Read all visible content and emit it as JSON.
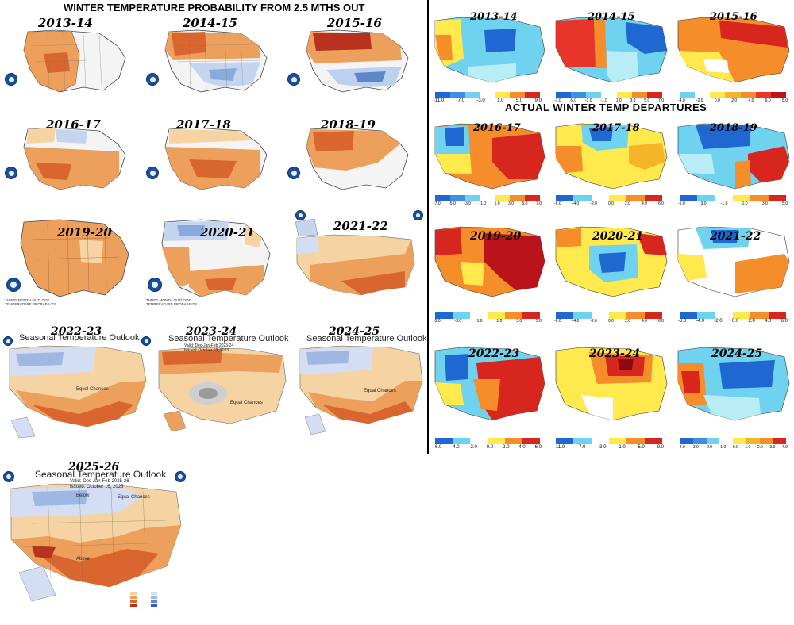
{
  "header": {
    "left_title": "WINTER TEMPERATURE PROBABILITY FROM 2.5 MTHS OUT",
    "right_title": "ACTUAL WINTER TEMP DEPARTURES"
  },
  "outlooks": [
    {
      "year": "2013-14"
    },
    {
      "year": "2014-15"
    },
    {
      "year": "2015-16"
    },
    {
      "year": "2016-17"
    },
    {
      "year": "2017-18"
    },
    {
      "year": "2018-19"
    },
    {
      "year": "2019-20"
    },
    {
      "year": "2020-21"
    },
    {
      "year": "2021-22"
    },
    {
      "year": "2022-23",
      "heading": "Seasonal Temperature Outlook",
      "equal": "Equal Chances"
    },
    {
      "year": "2023-24",
      "heading": "Seasonal Temperature Outlook",
      "valid": "Valid: Dec-Jan-Feb 2023-24",
      "issued": "Issued: October 19, 2023",
      "equal": "Equal Chances"
    },
    {
      "year": "2024-25",
      "heading": "Seasonal Temperature Outlook",
      "equal": "Equal Chances"
    },
    {
      "year": "2025-26",
      "heading": "Seasonal Temperature Outlook",
      "valid": "Valid: Dec-Jan-Feb 2025-26",
      "issued": "Issued: October 16, 2025",
      "equal": "Equal Chances",
      "below": "Below",
      "above": "Above"
    }
  ],
  "departures": [
    {
      "year": "2013-14",
      "scale": [
        "-11.0",
        "-7.0",
        "-3.0",
        "1.0",
        "5.0",
        "9.0"
      ]
    },
    {
      "year": "2014-15",
      "scale": [
        "-7.0",
        "-5.0",
        "-3.0",
        "-1.0",
        "1.0",
        "3.0",
        "5.0",
        "7.0"
      ]
    },
    {
      "year": "2015-16",
      "scale": [
        "-4.0",
        "-2.0",
        "0.0",
        "2.0",
        "4.0",
        "6.0",
        "8.0"
      ]
    },
    {
      "year": "2016-17",
      "scale": [
        "-7.0",
        "-5.0",
        "-3.0",
        "-1.0",
        "1.0",
        "3.0",
        "5.0",
        "7.0"
      ]
    },
    {
      "year": "2017-18",
      "scale": [
        "-6.0",
        "-4.0",
        "-2.0",
        "0.0",
        "2.0",
        "4.0",
        "6.0"
      ]
    },
    {
      "year": "2018-19",
      "scale": [
        "-5.0",
        "-3.0",
        "-1.0",
        "1.0",
        "3.0",
        "5.0"
      ]
    },
    {
      "year": "2019-20",
      "scale": [
        "-5.0",
        "-3.0",
        "-1.0",
        "1.0",
        "3.0",
        "5.0"
      ]
    },
    {
      "year": "2020-21",
      "scale": [
        "-6.0",
        "-4.0",
        "-2.0",
        "0.0",
        "2.0",
        "4.0",
        "6.0"
      ]
    },
    {
      "year": "2021-22",
      "scale": [
        "-6.0",
        "-4.0",
        "-2.0",
        "0.0",
        "2.0",
        "4.0",
        "6.0"
      ]
    },
    {
      "year": "2022-23",
      "scale": [
        "-6.0",
        "-4.0",
        "-2.0",
        "0.0",
        "2.0",
        "4.0",
        "6.0"
      ]
    },
    {
      "year": "2023-24",
      "scale": [
        "-11.0",
        "-7.0",
        "-3.0",
        "1.0",
        "5.0",
        "9.0"
      ]
    },
    {
      "year": "2024-25",
      "scale": [
        "-4.0",
        "-3.0",
        "-2.0",
        "-1.0",
        "0.0",
        "1.0",
        "2.0",
        "3.0",
        "4.0"
      ]
    }
  ],
  "colors": {
    "warm1": "#f6d3a3",
    "warm2": "#eda05c",
    "warm3": "#d8662e",
    "warm4": "#b8321f",
    "cool1": "#d4def3",
    "cool2": "#9fb8e3",
    "cool3": "#5f86c9",
    "red": "#d7261e",
    "orange": "#f58d2a",
    "yellow": "#ffe94d",
    "cyan": "#6fd3f0",
    "blue": "#1f67d1"
  }
}
